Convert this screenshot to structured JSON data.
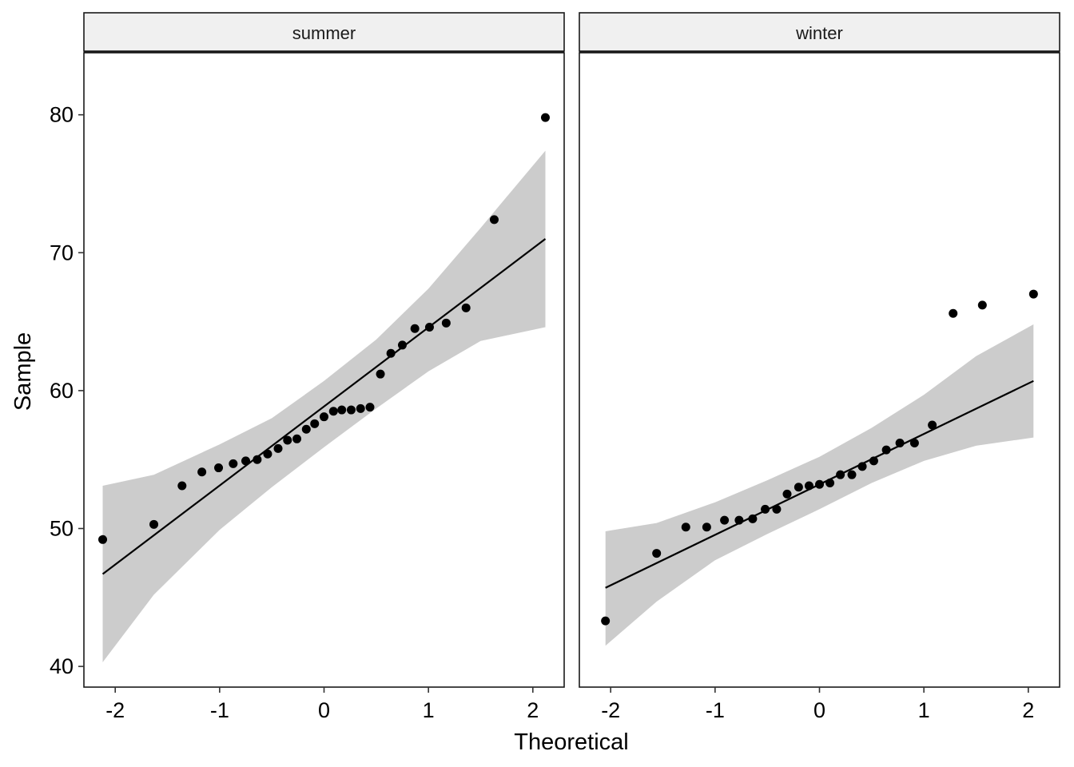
{
  "chart_data": {
    "type": "scatter",
    "subtype": "qq-plot",
    "xlabel": "Theoretical",
    "ylabel": "Sample",
    "xlim": [
      -2.3,
      2.3
    ],
    "ylim": [
      38.5,
      84.5
    ],
    "x_ticks": [
      -2,
      -1,
      0,
      1,
      2
    ],
    "x_tick_labels": [
      "-2",
      "-1",
      "0",
      "1",
      "2"
    ],
    "y_ticks": [
      40,
      50,
      60,
      70,
      80
    ],
    "y_tick_labels": [
      "40",
      "50",
      "60",
      "70",
      "80"
    ],
    "grid": false,
    "colors": {
      "points": "#000000",
      "line": "#000000",
      "band": "#cccccc",
      "strip_background": "#f0f0f0",
      "panel_border": "#1a1a1a"
    },
    "panels": [
      {
        "label": "summer",
        "points": [
          [
            -2.12,
            49.2
          ],
          [
            -1.63,
            50.3
          ],
          [
            -1.36,
            53.1
          ],
          [
            -1.17,
            54.1
          ],
          [
            -1.01,
            54.4
          ],
          [
            -0.87,
            54.7
          ],
          [
            -0.75,
            54.9
          ],
          [
            -0.64,
            55.0
          ],
          [
            -0.54,
            55.4
          ],
          [
            -0.44,
            55.8
          ],
          [
            -0.35,
            56.4
          ],
          [
            -0.26,
            56.5
          ],
          [
            -0.17,
            57.2
          ],
          [
            -0.09,
            57.6
          ],
          [
            0.0,
            58.1
          ],
          [
            0.09,
            58.5
          ],
          [
            0.17,
            58.6
          ],
          [
            0.26,
            58.6
          ],
          [
            0.35,
            58.7
          ],
          [
            0.44,
            58.8
          ],
          [
            0.54,
            61.2
          ],
          [
            0.64,
            62.7
          ],
          [
            0.75,
            63.3
          ],
          [
            0.87,
            64.5
          ],
          [
            1.01,
            64.6
          ],
          [
            1.17,
            64.9
          ],
          [
            1.36,
            66.0
          ],
          [
            1.63,
            72.4
          ],
          [
            2.12,
            79.8
          ]
        ],
        "line": [
          [
            -2.12,
            46.7
          ],
          [
            2.12,
            71.0
          ]
        ],
        "band_upper": [
          [
            -2.12,
            53.1
          ],
          [
            -1.63,
            53.9
          ],
          [
            -1.0,
            56.1
          ],
          [
            -0.5,
            58.0
          ],
          [
            0.0,
            60.7
          ],
          [
            0.5,
            63.7
          ],
          [
            1.0,
            67.4
          ],
          [
            1.5,
            71.8
          ],
          [
            2.12,
            77.4
          ]
        ],
        "band_lower": [
          [
            -2.12,
            40.3
          ],
          [
            -1.63,
            45.2
          ],
          [
            -1.0,
            49.9
          ],
          [
            -0.5,
            53.0
          ],
          [
            0.0,
            55.9
          ],
          [
            0.5,
            58.7
          ],
          [
            1.0,
            61.4
          ],
          [
            1.5,
            63.6
          ],
          [
            2.12,
            64.6
          ]
        ]
      },
      {
        "label": "winter",
        "points": [
          [
            -2.05,
            43.3
          ],
          [
            -1.56,
            48.2
          ],
          [
            -1.28,
            50.1
          ],
          [
            -1.08,
            50.1
          ],
          [
            -0.91,
            50.6
          ],
          [
            -0.77,
            50.6
          ],
          [
            -0.64,
            50.7
          ],
          [
            -0.52,
            51.4
          ],
          [
            -0.41,
            51.4
          ],
          [
            -0.31,
            52.5
          ],
          [
            -0.2,
            53.0
          ],
          [
            -0.1,
            53.1
          ],
          [
            0.0,
            53.2
          ],
          [
            0.1,
            53.3
          ],
          [
            0.2,
            53.9
          ],
          [
            0.31,
            53.9
          ],
          [
            0.41,
            54.5
          ],
          [
            0.52,
            54.9
          ],
          [
            0.64,
            55.7
          ],
          [
            0.77,
            56.2
          ],
          [
            0.91,
            56.2
          ],
          [
            1.08,
            57.5
          ],
          [
            1.28,
            65.6
          ],
          [
            1.56,
            66.2
          ],
          [
            2.05,
            67.0
          ]
        ],
        "line": [
          [
            -2.05,
            45.7
          ],
          [
            2.05,
            60.7
          ]
        ],
        "band_upper": [
          [
            -2.05,
            49.8
          ],
          [
            -1.56,
            50.4
          ],
          [
            -1.0,
            51.9
          ],
          [
            -0.5,
            53.5
          ],
          [
            0.0,
            55.2
          ],
          [
            0.5,
            57.3
          ],
          [
            1.0,
            59.7
          ],
          [
            1.5,
            62.5
          ],
          [
            2.05,
            64.8
          ]
        ],
        "band_lower": [
          [
            -2.05,
            41.5
          ],
          [
            -1.56,
            44.7
          ],
          [
            -1.0,
            47.7
          ],
          [
            -0.5,
            49.6
          ],
          [
            0.0,
            51.4
          ],
          [
            0.5,
            53.3
          ],
          [
            1.0,
            54.9
          ],
          [
            1.5,
            56.0
          ],
          [
            2.05,
            56.6
          ]
        ]
      }
    ]
  }
}
